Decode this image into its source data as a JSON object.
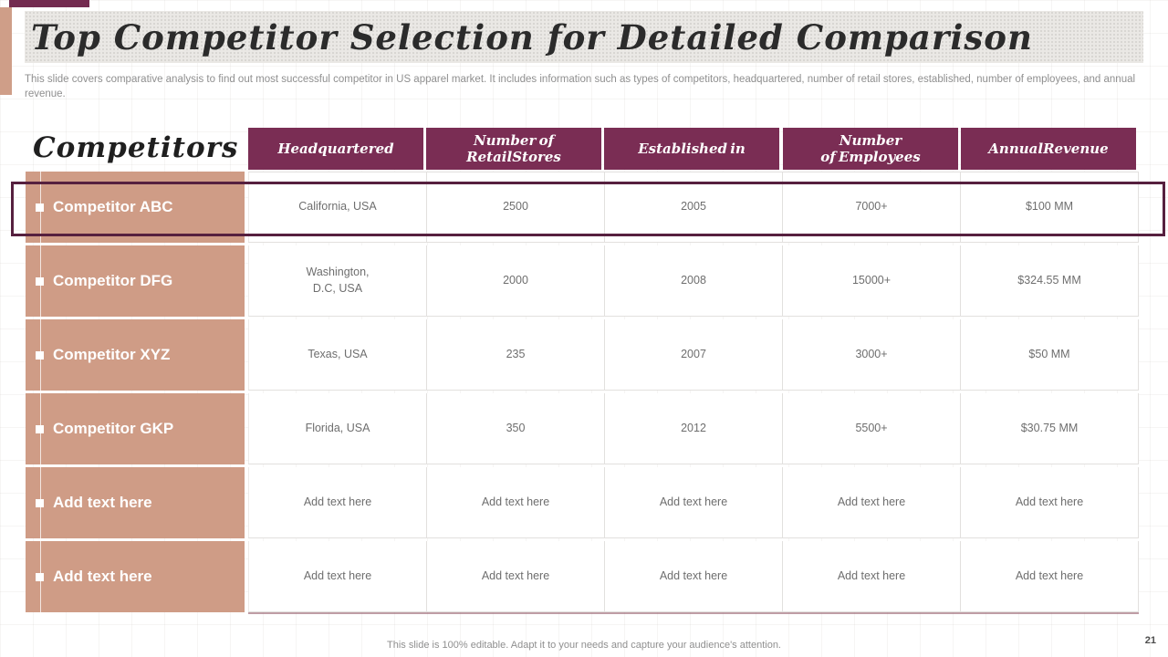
{
  "slide": {
    "title": "Top Competitor Selection for Detailed Comparison",
    "description": "This slide covers comparative analysis to find out most successful competitor in US apparel market. It includes information such as types of competitors, headquartered, number of retail stores, established, number of employees, and annual revenue.",
    "footer_note": "This slide is 100% editable. Adapt it to your needs and capture your audience's attention.",
    "page_number": "21"
  },
  "table": {
    "row_header_label": "Competitors",
    "columns": [
      "Headquartered",
      "Number of\nRetailStores",
      "Established in",
      "Number\nof Employees",
      "AnnualRevenue"
    ],
    "rows": [
      {
        "name": "Competitor ABC",
        "highlighted": true,
        "values": [
          "California, USA",
          "2500",
          "2005",
          "7000+",
          "$100 MM"
        ]
      },
      {
        "name": "Competitor DFG",
        "highlighted": false,
        "values": [
          "Washington,\nD.C, USA",
          "2000",
          "2008",
          "15000+",
          "$324.55 MM"
        ]
      },
      {
        "name": "Competitor XYZ",
        "highlighted": false,
        "values": [
          "Texas, USA",
          "235",
          "2007",
          "3000+",
          "$50 MM"
        ]
      },
      {
        "name": "Competitor GKP",
        "highlighted": false,
        "values": [
          "Florida, USA",
          "350",
          "2012",
          "5500+",
          "$30.75 MM"
        ]
      },
      {
        "name": "Add text here",
        "highlighted": false,
        "values": [
          "Add text here",
          "Add text here",
          "Add text here",
          "Add text here",
          "Add text here"
        ]
      },
      {
        "name": "Add text here",
        "highlighted": false,
        "values": [
          "Add text here",
          "Add text here",
          "Add text here",
          "Add text here",
          "Add text here"
        ]
      }
    ]
  },
  "colors": {
    "header_purple": "#7a2d54",
    "salmon": "#cf9c86",
    "accent_salmon_bar": "#cf9e88",
    "accent_purple_bar": "#732b50",
    "highlight_border": "#56203f"
  }
}
